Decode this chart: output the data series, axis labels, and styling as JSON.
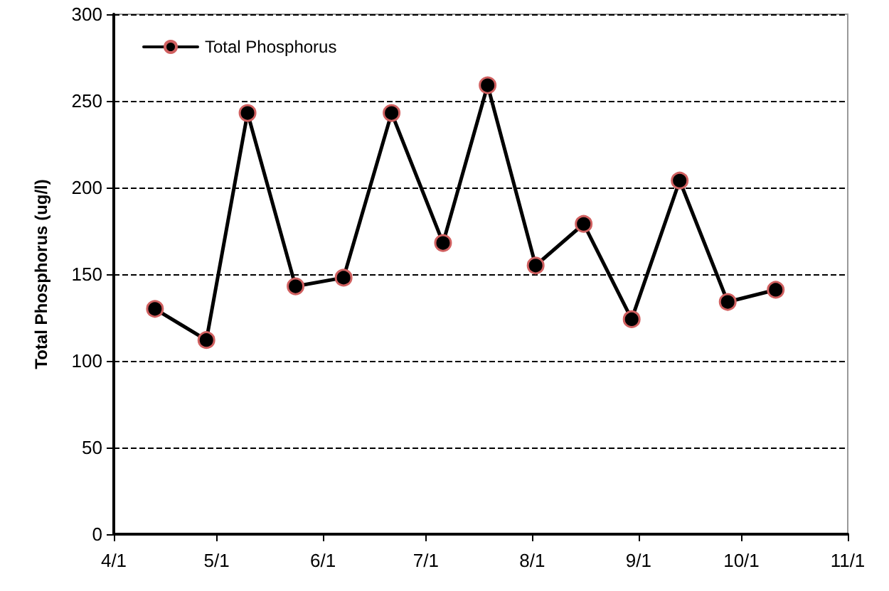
{
  "chart_data": {
    "type": "line",
    "ylabel": "Total Phosphorus (ug/l)",
    "x": [
      "--04-13",
      "--04-28",
      "--05-10",
      "--05-24",
      "--06-07",
      "--06-21",
      "--07-06",
      "--07-19",
      "--08-02",
      "--08-16",
      "--08-30",
      "--09-13",
      "--09-27",
      "--10-11"
    ],
    "series": [
      {
        "name": "Total Phosphorus",
        "color": "#000000",
        "values": [
          130,
          112,
          243,
          143,
          148,
          243,
          168,
          259,
          155,
          179,
          124,
          204,
          134,
          141
        ]
      }
    ],
    "xlim": [
      "--04-01",
      "--11-01"
    ],
    "xticks": [
      {
        "value": "--04-01",
        "label": "4/1"
      },
      {
        "value": "--05-01",
        "label": "5/1"
      },
      {
        "value": "--06-01",
        "label": "6/1"
      },
      {
        "value": "--07-01",
        "label": "7/1"
      },
      {
        "value": "--08-01",
        "label": "8/1"
      },
      {
        "value": "--09-01",
        "label": "9/1"
      },
      {
        "value": "--10-01",
        "label": "10/1"
      },
      {
        "value": "--11-01",
        "label": "11/1"
      }
    ],
    "ylim": [
      0,
      300
    ],
    "yticks": [
      0,
      50,
      100,
      150,
      200,
      250,
      300
    ],
    "grid": "y",
    "legend": "top left",
    "marker": "circle",
    "line_style": "solid"
  }
}
